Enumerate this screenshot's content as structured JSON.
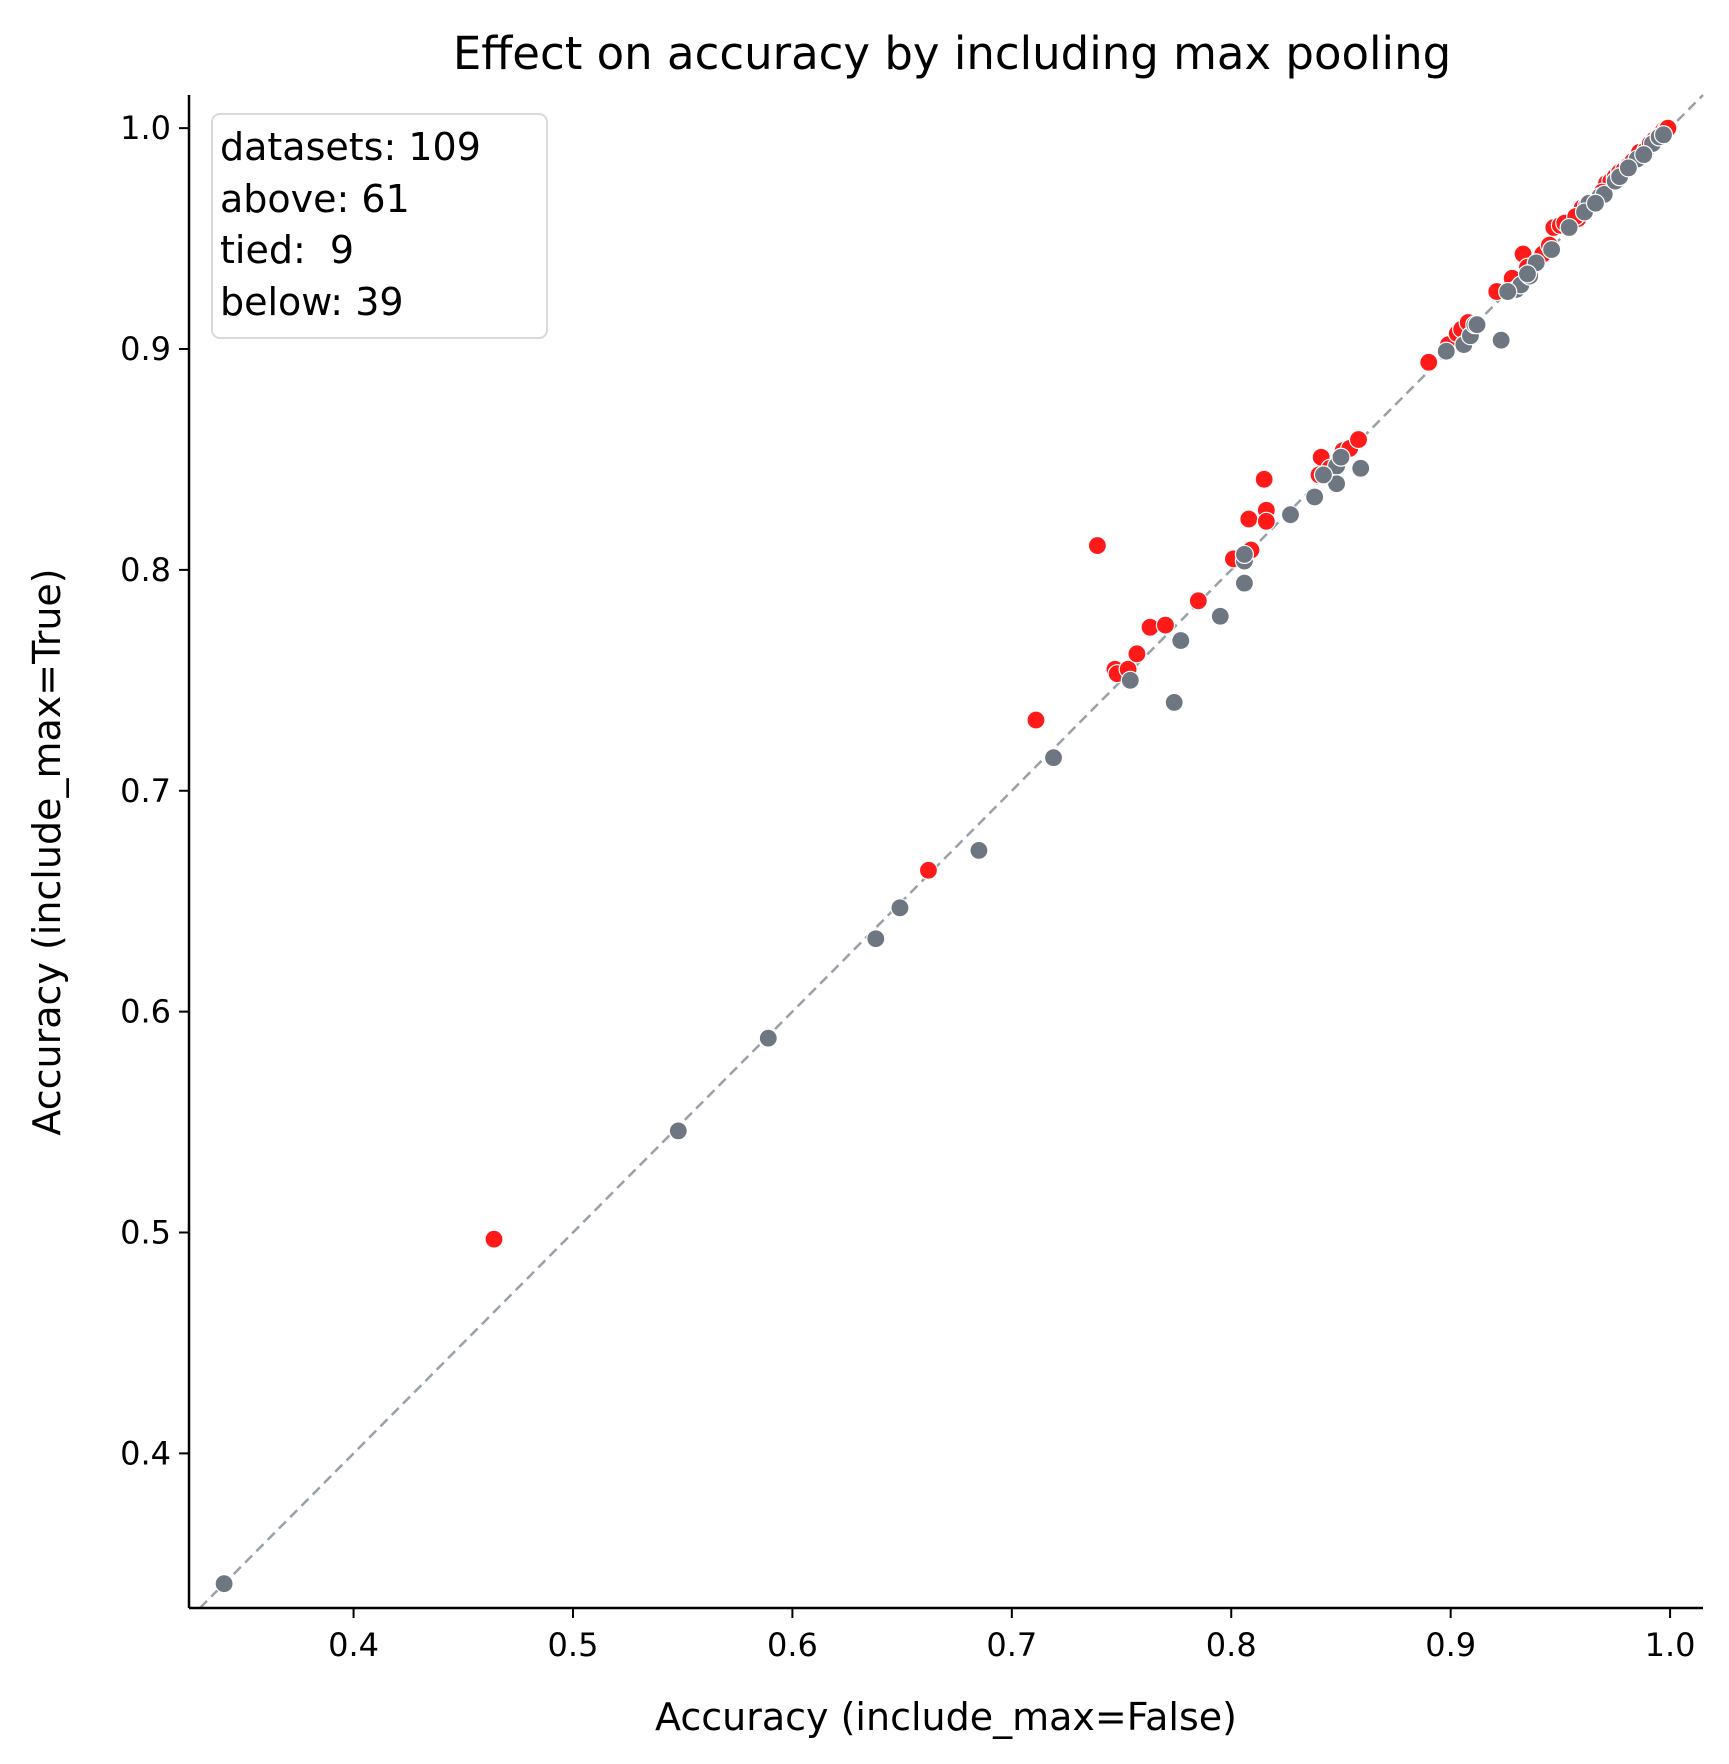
{
  "chart_data": {
    "type": "scatter",
    "title": "Effect on accuracy by including max pooling",
    "xlabel": "Accuracy (include_max=False)",
    "ylabel": "Accuracy (include_max=True)",
    "xlim": [
      0.325,
      1.015
    ],
    "ylim": [
      0.33,
      1.015
    ],
    "xticks": [
      "0.4",
      "0.5",
      "0.6",
      "0.7",
      "0.8",
      "0.9",
      "1.0"
    ],
    "yticks": [
      "0.4",
      "0.5",
      "0.6",
      "0.7",
      "0.8",
      "0.9",
      "1.0"
    ],
    "grid": false,
    "reference_line": "y = x (dashed)",
    "stats_box": {
      "placement": "top-left",
      "lines": [
        "datasets: 109",
        "above: 61",
        "tied:  9",
        "below: 39"
      ]
    },
    "colors": {
      "improved": "#ff1a1a",
      "not_improved": "#6e7681",
      "reference_line": "#9aa0a8"
    },
    "series": [
      {
        "color": "#ff1a1a",
        "points": [
          [
            0.464,
            0.497
          ],
          [
            0.662,
            0.664
          ],
          [
            0.711,
            0.732
          ],
          [
            0.739,
            0.811
          ],
          [
            0.747,
            0.755
          ],
          [
            0.748,
            0.753
          ],
          [
            0.753,
            0.755
          ],
          [
            0.757,
            0.762
          ],
          [
            0.763,
            0.774
          ],
          [
            0.77,
            0.775
          ],
          [
            0.785,
            0.786
          ],
          [
            0.801,
            0.805
          ],
          [
            0.808,
            0.823
          ],
          [
            0.809,
            0.809
          ],
          [
            0.815,
            0.841
          ],
          [
            0.816,
            0.827
          ],
          [
            0.816,
            0.822
          ],
          [
            0.84,
            0.843
          ],
          [
            0.841,
            0.851
          ],
          [
            0.845,
            0.846
          ],
          [
            0.851,
            0.854
          ],
          [
            0.854,
            0.855
          ],
          [
            0.858,
            0.859
          ],
          [
            0.89,
            0.894
          ],
          [
            0.899,
            0.902
          ],
          [
            0.903,
            0.907
          ],
          [
            0.905,
            0.909
          ],
          [
            0.908,
            0.912
          ],
          [
            0.921,
            0.926
          ],
          [
            0.928,
            0.932
          ],
          [
            0.933,
            0.943
          ],
          [
            0.942,
            0.943
          ],
          [
            0.945,
            0.947
          ],
          [
            0.947,
            0.955
          ],
          [
            0.95,
            0.956
          ],
          [
            0.952,
            0.957
          ],
          [
            0.958,
            0.959
          ],
          [
            0.96,
            0.964
          ],
          [
            0.962,
            0.965
          ],
          [
            0.965,
            0.967
          ],
          [
            0.967,
            0.968
          ],
          [
            0.968,
            0.97
          ],
          [
            0.971,
            0.975
          ],
          [
            0.973,
            0.976
          ],
          [
            0.975,
            0.978
          ],
          [
            0.977,
            0.98
          ],
          [
            0.979,
            0.981
          ],
          [
            0.981,
            0.983
          ],
          [
            0.983,
            0.985
          ],
          [
            0.986,
            0.989
          ],
          [
            0.989,
            0.99
          ],
          [
            0.991,
            0.993
          ],
          [
            0.993,
            0.995
          ],
          [
            0.995,
            0.997
          ],
          [
            0.996,
            0.998
          ],
          [
            0.997,
            0.999
          ],
          [
            0.998,
            0.999
          ],
          [
            0.999,
            1.0
          ],
          [
            0.969,
            0.971
          ],
          [
            0.957,
            0.96
          ],
          [
            0.935,
            0.937
          ]
        ]
      },
      {
        "color": "#6e7681",
        "points": [
          [
            0.341,
            0.341
          ],
          [
            0.548,
            0.546
          ],
          [
            0.589,
            0.588
          ],
          [
            0.638,
            0.633
          ],
          [
            0.649,
            0.647
          ],
          [
            0.685,
            0.673
          ],
          [
            0.719,
            0.715
          ],
          [
            0.754,
            0.75
          ],
          [
            0.774,
            0.74
          ],
          [
            0.777,
            0.768
          ],
          [
            0.795,
            0.779
          ],
          [
            0.806,
            0.804
          ],
          [
            0.806,
            0.807
          ],
          [
            0.806,
            0.794
          ],
          [
            0.827,
            0.825
          ],
          [
            0.838,
            0.833
          ],
          [
            0.848,
            0.847
          ],
          [
            0.848,
            0.839
          ],
          [
            0.859,
            0.846
          ],
          [
            0.906,
            0.902
          ],
          [
            0.909,
            0.906
          ],
          [
            0.911,
            0.911
          ],
          [
            0.923,
            0.904
          ],
          [
            0.93,
            0.927
          ],
          [
            0.932,
            0.929
          ],
          [
            0.936,
            0.933
          ],
          [
            0.939,
            0.939
          ],
          [
            0.963,
            0.966
          ],
          [
            0.968,
            0.969
          ],
          [
            0.97,
            0.97
          ],
          [
            0.975,
            0.976
          ],
          [
            0.977,
            0.978
          ],
          [
            0.985,
            0.986
          ],
          [
            0.992,
            0.993
          ],
          [
            0.995,
            0.996
          ],
          [
            0.997,
            0.997
          ],
          [
            0.954,
            0.955
          ],
          [
            0.946,
            0.945
          ],
          [
            0.912,
            0.911
          ],
          [
            0.898,
            0.899
          ],
          [
            0.85,
            0.851
          ],
          [
            0.842,
            0.843
          ],
          [
            0.981,
            0.982
          ],
          [
            0.988,
            0.988
          ],
          [
            0.961,
            0.962
          ],
          [
            0.966,
            0.966
          ],
          [
            0.935,
            0.934
          ],
          [
            0.926,
            0.926
          ]
        ]
      }
    ]
  }
}
